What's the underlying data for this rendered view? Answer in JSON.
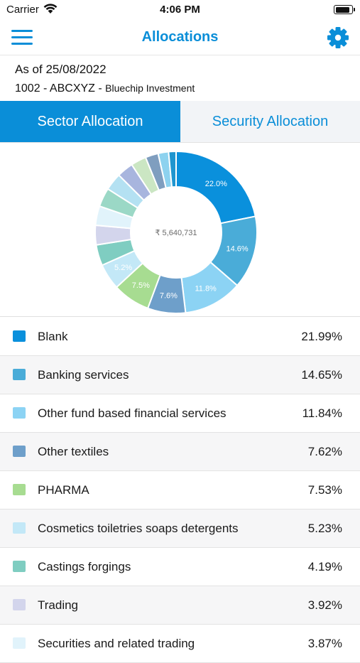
{
  "status": {
    "carrier": "Carrier",
    "time": "4:06 PM",
    "battery_level": 0.95
  },
  "nav": {
    "title": "Allocations",
    "menu_icon": "hamburger-menu-icon",
    "settings_icon": "gear-icon"
  },
  "info": {
    "as_of": "As of 25/08/2022",
    "account_code": "1002 - ABCXYZ - ",
    "account_name": "Bluechip Investment"
  },
  "tabs": [
    {
      "label": "Sector Allocation",
      "active": true
    },
    {
      "label": "Security Allocation",
      "active": false
    }
  ],
  "chart_data": {
    "type": "pie",
    "center_label": "₹ 5,640,731",
    "slices": [
      {
        "label": "22.0%",
        "value": 21.99,
        "color": "#0a90dc"
      },
      {
        "label": "14.6%",
        "value": 14.65,
        "color": "#4aacd8"
      },
      {
        "label": "11.8%",
        "value": 11.84,
        "color": "#8cd3f4"
      },
      {
        "label": "7.6%",
        "value": 7.62,
        "color": "#6e9fca"
      },
      {
        "label": "7.5%",
        "value": 7.53,
        "color": "#a7dc91"
      },
      {
        "label": "5.2%",
        "value": 5.23,
        "color": "#c3e8f7"
      },
      {
        "label": "",
        "value": 4.19,
        "color": "#7fcdc1"
      },
      {
        "label": "",
        "value": 3.92,
        "color": "#d3d5ec"
      },
      {
        "label": "",
        "value": 3.87,
        "color": "#e1f3fb"
      },
      {
        "label": "",
        "value": 3.8,
        "color": "#9bd8c6"
      },
      {
        "label": "",
        "value": 3.5,
        "color": "#b4e1f2"
      },
      {
        "label": "",
        "value": 3.3,
        "color": "#a8b5de"
      },
      {
        "label": "",
        "value": 3.1,
        "color": "#cbe6c3"
      },
      {
        "label": "",
        "value": 2.6,
        "color": "#7f9ebf"
      },
      {
        "label": "",
        "value": 2.1,
        "color": "#8dd2ef"
      },
      {
        "label": "",
        "value": 1.5,
        "color": "#1f95cf"
      }
    ]
  },
  "legend": [
    {
      "label": "Blank",
      "value": "21.99%",
      "color": "#0a90dc"
    },
    {
      "label": "Banking services",
      "value": "14.65%",
      "color": "#4aacd8"
    },
    {
      "label": "Other fund based financial services",
      "value": "11.84%",
      "color": "#8cd3f4"
    },
    {
      "label": "Other textiles",
      "value": "7.62%",
      "color": "#6e9fca"
    },
    {
      "label": "PHARMA",
      "value": "7.53%",
      "color": "#a7dc91"
    },
    {
      "label": "Cosmetics toiletries soaps detergents",
      "value": "5.23%",
      "color": "#c3e8f7"
    },
    {
      "label": "Castings forgings",
      "value": "4.19%",
      "color": "#7fcdc1"
    },
    {
      "label": "Trading",
      "value": "3.92%",
      "color": "#d3d5ec"
    },
    {
      "label": "Securities and related trading",
      "value": "3.87%",
      "color": "#e1f3fb"
    }
  ]
}
